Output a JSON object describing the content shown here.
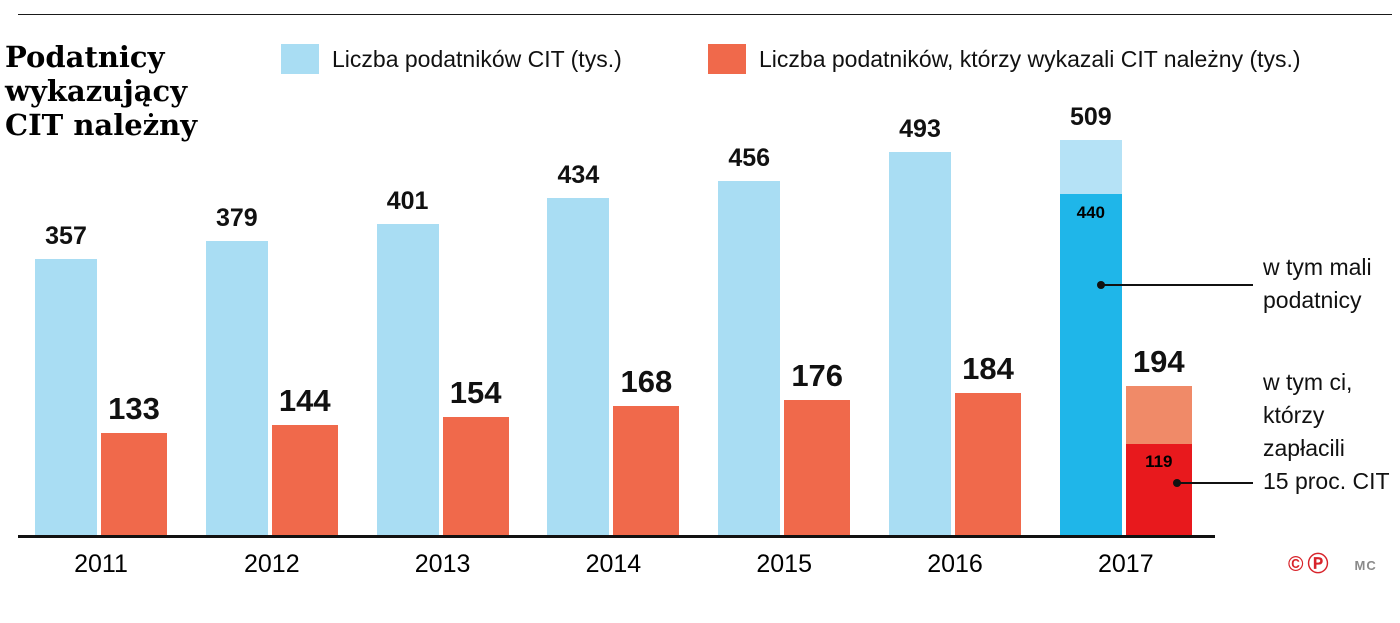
{
  "title_lines": "Podatnicy\nwykazujący\nCIT należny",
  "footer": {
    "copyright": "©",
    "p_mark": "Ⓟ",
    "credit": "MC"
  },
  "chart_data": {
    "type": "bar",
    "title": "Podatnicy wykazujący CIT należny",
    "categories": [
      "2011",
      "2012",
      "2013",
      "2014",
      "2015",
      "2016",
      "2017"
    ],
    "series": [
      {
        "name": "Liczba podatników CIT (tys.)",
        "color": "#a9ddf3",
        "values": [
          357,
          379,
          401,
          434,
          456,
          493,
          509
        ]
      },
      {
        "name": "Liczba podatników, którzy wykazali CIT należny (tys.)",
        "color": "#f0694b",
        "values": [
          133,
          144,
          154,
          168,
          176,
          184,
          194
        ]
      }
    ],
    "highlight_2017": {
      "mali_podatnicy": {
        "value": 440,
        "color": "#1fb6e9",
        "rest_color": "#b5e2f6",
        "label": "w tym mali\npodatnicy"
      },
      "zaplacili_15_proc": {
        "value": 119,
        "color": "#e8191d",
        "rest_color": "#f08a68",
        "label": "w tym ci,\nktórzy\nzapłacili\n15 proc. CIT"
      }
    },
    "ylim": [
      0,
      555
    ],
    "grid": false,
    "legend_position": "top",
    "xlabel": "",
    "ylabel": ""
  }
}
